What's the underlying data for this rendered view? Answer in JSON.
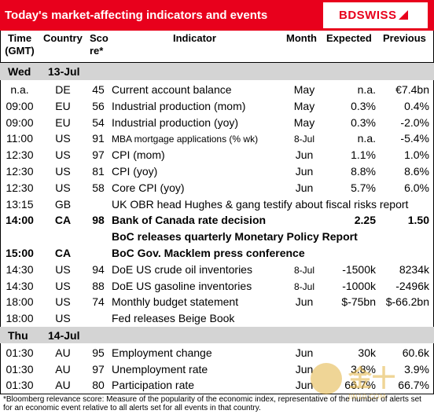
{
  "title": "Today's market-affecting indicators and events",
  "brand": "BDSWISS",
  "colors": {
    "accent": "#e8001c",
    "band": "#d4d4d4"
  },
  "headers": {
    "time": [
      "Time",
      "(GMT)"
    ],
    "country": "Country",
    "score": [
      "Sco",
      "re*"
    ],
    "indicator": "Indicator",
    "month": "Month",
    "expected": "Expected",
    "previous": "Previous"
  },
  "days": [
    {
      "day": "Wed",
      "date": "13-Jul"
    },
    {
      "day": "Thu",
      "date": "14-Jul"
    }
  ],
  "rows_wed": [
    {
      "time": "n.a.",
      "country": "DE",
      "score": "45",
      "indicator": "Current account balance",
      "month": "May",
      "expected": "n.a.",
      "previous": "€7.4bn"
    },
    {
      "time": "09:00",
      "country": "EU",
      "score": "56",
      "indicator": "Industrial production (mom)",
      "month": "May",
      "expected": "0.3%",
      "previous": "0.4%"
    },
    {
      "time": "09:00",
      "country": "EU",
      "score": "54",
      "indicator": "Industrial production (yoy)",
      "month": "May",
      "expected": "0.3%",
      "previous": "-2.0%"
    },
    {
      "time": "11:00",
      "country": "US",
      "score": "91",
      "indicator": "MBA mortgage applications (% wk)",
      "month": "8-Jul",
      "expected": "n.a.",
      "previous": "-5.4%"
    },
    {
      "time": "12:30",
      "country": "US",
      "score": "97",
      "indicator": "CPI (mom)",
      "month": "Jun",
      "expected": "1.1%",
      "previous": "1.0%"
    },
    {
      "time": "12:30",
      "country": "US",
      "score": "81",
      "indicator": "CPI (yoy)",
      "month": "Jun",
      "expected": "8.8%",
      "previous": "8.6%"
    },
    {
      "time": "12:30",
      "country": "US",
      "score": "58",
      "indicator": "Core CPI (yoy)",
      "month": "Jun",
      "expected": "5.7%",
      "previous": "6.0%"
    },
    {
      "time": "13:15",
      "country": "GB",
      "score": "",
      "indicator": "UK OBR head Hughes & gang testify about fiscal risks report",
      "month": "",
      "expected": "",
      "previous": ""
    },
    {
      "time": "14:00",
      "country": "CA",
      "score": "98",
      "indicator": "Bank of Canada rate decision",
      "month": "",
      "expected": "2.25",
      "previous": "1.50"
    },
    {
      "time": "",
      "country": "",
      "score": "",
      "indicator": "BoC releases quarterly Monetary Policy Report",
      "month": "",
      "expected": "",
      "previous": ""
    },
    {
      "time": "15:00",
      "country": "CA",
      "score": "",
      "indicator": "BoC Gov. Macklem press conference",
      "month": "",
      "expected": "",
      "previous": ""
    },
    {
      "time": "14:30",
      "country": "US",
      "score": "94",
      "indicator": "DoE US crude oil inventories",
      "month": "8-Jul",
      "expected": "-1500k",
      "previous": "8234k"
    },
    {
      "time": "14:30",
      "country": "US",
      "score": "88",
      "indicator": "DoE US gasoline inventories",
      "month": "8-Jul",
      "expected": "-1000k",
      "previous": "-2496k"
    },
    {
      "time": "18:00",
      "country": "US",
      "score": "74",
      "indicator": "Monthly budget statement",
      "month": "Jun",
      "expected": "$-75bn",
      "previous": "$-66.2bn"
    },
    {
      "time": "18:00",
      "country": "US",
      "score": "",
      "indicator": "Fed releases Beige Book",
      "month": "",
      "expected": "",
      "previous": ""
    }
  ],
  "rows_thu": [
    {
      "time": "01:30",
      "country": "AU",
      "score": "95",
      "indicator": "Employment change",
      "month": "Jun",
      "expected": "30k",
      "previous": "60.6k"
    },
    {
      "time": "01:30",
      "country": "AU",
      "score": "97",
      "indicator": "Unemployment rate",
      "month": "Jun",
      "expected": "3.8%",
      "previous": "3.9%"
    },
    {
      "time": "01:30",
      "country": "AU",
      "score": "80",
      "indicator": "Participation rate",
      "month": "Jun",
      "expected": "66.7%",
      "previous": "66.7%"
    }
  ],
  "footnote": "*Bloomberg relevance score: Measure of the popularity of the economic index, representative of the number of alerts set for an economic event relative to all alerts set for all events in that country.",
  "watermark": {
    "text": "金十",
    "sub": "JIN10.COM"
  }
}
